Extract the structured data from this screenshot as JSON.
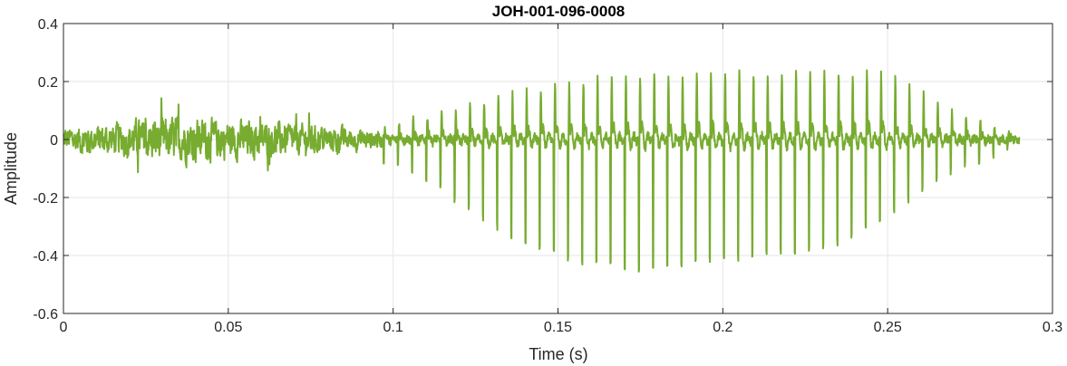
{
  "chart_data": {
    "type": "line",
    "title": "JOH-001-096-0008",
    "xlabel": "Time (s)",
    "ylabel": "Amplitude",
    "xlim": [
      0,
      0.3
    ],
    "ylim": [
      -0.6,
      0.4
    ],
    "xticks": [
      0,
      0.05,
      0.1,
      0.15,
      0.2,
      0.25,
      0.3
    ],
    "xtick_labels": [
      "0",
      "0.05",
      "0.1",
      "0.15",
      "0.2",
      "0.25",
      "0.3"
    ],
    "yticks": [
      -0.6,
      -0.4,
      -0.2,
      0,
      0.2,
      0.4
    ],
    "ytick_labels": [
      "-0.6",
      "-0.4",
      "-0.2",
      "0",
      "0.2",
      "0.4"
    ],
    "grid": true,
    "colors": {
      "line": "#77AC30",
      "grid": "#E6E6E6",
      "axis": "#262626"
    },
    "series": [
      {
        "duration": 0.29,
        "sample_step": 0.0001,
        "segments": [
          {
            "type": "noise",
            "t_start": 0,
            "t_end": 0.097,
            "envelope": [
              [
                0,
                0.05
              ],
              [
                0.015,
                0.06
              ],
              [
                0.03,
                0.085
              ],
              [
                0.05,
                0.075
              ],
              [
                0.07,
                0.06
              ],
              [
                0.085,
                0.045
              ],
              [
                0.097,
                0.03
              ]
            ]
          },
          {
            "type": "voiced",
            "t_start": 0.097,
            "t_end": 0.29,
            "pulse_period": 0.0043,
            "pos_envelope": [
              [
                0.097,
                0.05
              ],
              [
                0.11,
                0.08
              ],
              [
                0.13,
                0.14
              ],
              [
                0.15,
                0.19
              ],
              [
                0.17,
                0.22
              ],
              [
                0.19,
                0.23
              ],
              [
                0.21,
                0.23
              ],
              [
                0.23,
                0.24
              ],
              [
                0.25,
                0.22
              ],
              [
                0.26,
                0.16
              ],
              [
                0.27,
                0.1
              ],
              [
                0.29,
                0.02
              ]
            ],
            "neg_envelope": [
              [
                0.097,
                -0.08
              ],
              [
                0.11,
                -0.15
              ],
              [
                0.12,
                -0.25
              ],
              [
                0.13,
                -0.33
              ],
              [
                0.14,
                -0.42
              ],
              [
                0.15,
                -0.46
              ],
              [
                0.16,
                -0.49
              ],
              [
                0.175,
                -0.52
              ],
              [
                0.19,
                -0.49
              ],
              [
                0.21,
                -0.46
              ],
              [
                0.23,
                -0.43
              ],
              [
                0.24,
                -0.38
              ],
              [
                0.25,
                -0.3
              ],
              [
                0.26,
                -0.2
              ],
              [
                0.27,
                -0.12
              ],
              [
                0.29,
                -0.02
              ]
            ]
          }
        ]
      }
    ]
  }
}
